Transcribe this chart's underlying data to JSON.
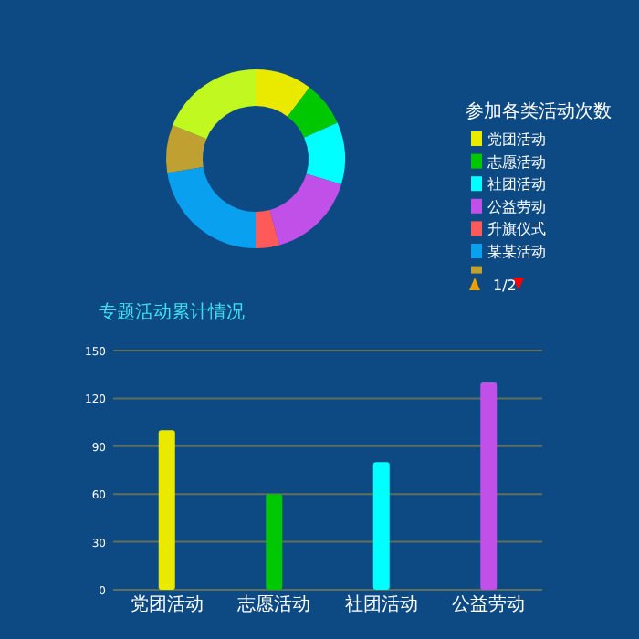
{
  "chart_data": [
    {
      "type": "donut",
      "legend_title": "参加各类活动次数",
      "legend": "right",
      "categories": [
        "党团活动",
        "志愿活动",
        "社团活动",
        "公益劳动",
        "升旗仪式",
        "某某活动",
        null,
        null
      ],
      "values": [
        10.3,
        8.1,
        11.2,
        16.1,
        4.3,
        22.5,
        8.6,
        18.9
      ],
      "colors": [
        "#eaea00",
        "#00c800",
        "#00ffff",
        "#c050e8",
        "#ff5a5a",
        "#0aa0f0",
        "#c0a030",
        "#c0f820"
      ],
      "annotations": [
        "1/2"
      ]
    },
    {
      "type": "bar",
      "title": "专题活动累计情况",
      "categories": [
        "党团活动",
        "志愿活动",
        "社团活动",
        "公益劳动"
      ],
      "values": [
        100,
        60,
        80,
        130
      ],
      "colors": [
        "#eaea00",
        "#00c800",
        "#00ffff",
        "#c050e8"
      ],
      "ylim": [
        0,
        150
      ],
      "yticks": [
        0,
        30,
        60,
        90,
        120,
        150
      ],
      "grid": "y"
    }
  ]
}
